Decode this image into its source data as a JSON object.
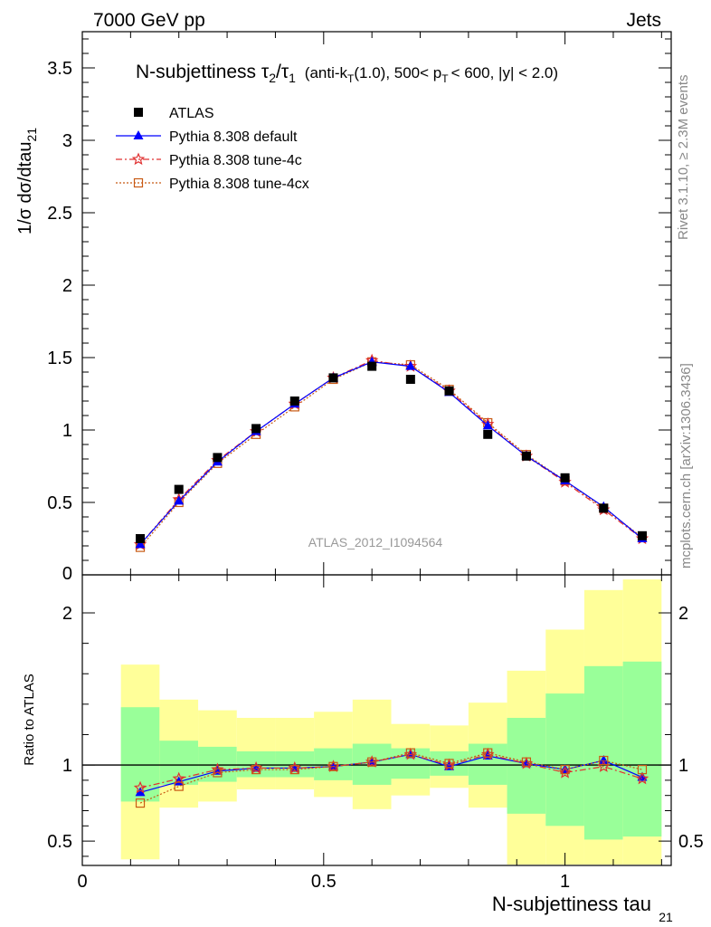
{
  "header": {
    "left": "7000 GeV pp",
    "right": "Jets"
  },
  "title": {
    "main": "N-subjettiness",
    "sym_tau": "τ",
    "sub2": "2",
    "slash": "/",
    "sub1": "1",
    "detail_a": "(anti-k",
    "detail_T": "T",
    "detail_b": "(1.0), 500< p",
    "detail_T2": "T",
    "detail_c": "< 600, |y| < 2.0)"
  },
  "side_labels": {
    "rivet": "Rivet 3.1.10, ≥ 2.3M events",
    "mcplots": "mcplots.cern.ch [arXiv:1306.3436]"
  },
  "analysis_id": "ATLAS_2012_I1094564",
  "axes": {
    "main_ylabel_main": "1/σ dσ/dtau",
    "main_ylabel_sub": "21",
    "ratio_ylabel": "Ratio to ATLAS",
    "xlabel_main": "N-subjettiness tau",
    "xlabel_sub": "21"
  },
  "legend": [
    {
      "label": "ATLAS",
      "color": "#000000",
      "marker": "square-filled"
    },
    {
      "label": "Pythia 8.308 default",
      "color": "#0000ff",
      "marker": "triangle",
      "dash": ""
    },
    {
      "label": "Pythia 8.308 tune-4c",
      "color": "#e03030",
      "marker": "star",
      "dash": "7,3,2,3"
    },
    {
      "label": "Pythia 8.308 tune-4cx",
      "color": "#c85a14",
      "marker": "open-square",
      "dash": "2,2"
    }
  ],
  "chart_data": {
    "type": "scatter",
    "x": [
      0.12,
      0.2,
      0.28,
      0.36,
      0.44,
      0.52,
      0.6,
      0.68,
      0.76,
      0.84,
      0.92,
      1.0,
      1.08,
      1.16
    ],
    "xlim": [
      0,
      1.22
    ],
    "main": {
      "ylim": [
        0,
        3.75
      ],
      "yticks": [
        0.5,
        1,
        1.5,
        2,
        2.5,
        3,
        3.5
      ],
      "ytick_labels": [
        "0.5",
        "1",
        "1.5",
        "2",
        "2.5",
        "3",
        "3.5"
      ],
      "ybottom_label": "0",
      "series": [
        {
          "name": "ATLAS",
          "values": [
            0.25,
            0.59,
            0.81,
            1.01,
            1.2,
            1.36,
            1.44,
            1.35,
            1.27,
            0.97,
            0.82,
            0.67,
            0.46,
            0.27
          ]
        },
        {
          "name": "Pythia 8.308 default",
          "values": [
            0.21,
            0.51,
            0.78,
            0.99,
            1.18,
            1.36,
            1.47,
            1.44,
            1.26,
            1.03,
            0.82,
            0.65,
            0.47,
            0.25
          ]
        },
        {
          "name": "Pythia 8.308 tune-4c",
          "values": [
            0.21,
            0.52,
            0.79,
            0.99,
            1.18,
            1.36,
            1.48,
            1.44,
            1.27,
            1.04,
            0.82,
            0.64,
            0.45,
            0.25
          ]
        },
        {
          "name": "Pythia 8.308 tune-4cx",
          "values": [
            0.19,
            0.5,
            0.77,
            0.97,
            1.16,
            1.35,
            1.47,
            1.45,
            1.28,
            1.05,
            0.83,
            0.65,
            0.46,
            0.26
          ]
        }
      ]
    },
    "ratio": {
      "ylim": [
        0.34,
        2.25
      ],
      "yticks": [
        0.5,
        1,
        2
      ],
      "ytick_labels": [
        "0.5",
        "1",
        "2"
      ],
      "band_edges": [
        0.08,
        0.16,
        0.24,
        0.32,
        0.4,
        0.48,
        0.56,
        0.64,
        0.72,
        0.8,
        0.88,
        0.96,
        1.04,
        1.12,
        1.2
      ],
      "band_inner_low": [
        0.76,
        0.87,
        0.89,
        0.92,
        0.92,
        0.9,
        0.87,
        0.91,
        0.93,
        0.87,
        0.68,
        0.6,
        0.51,
        0.53,
        0.51
      ],
      "band_inner_high": [
        1.38,
        1.16,
        1.12,
        1.09,
        1.09,
        1.11,
        1.14,
        1.11,
        1.09,
        1.14,
        1.31,
        1.47,
        1.65,
        1.68,
        1.73
      ],
      "band_outer_low": [
        0.38,
        0.72,
        0.76,
        0.84,
        0.84,
        0.79,
        0.71,
        0.8,
        0.85,
        0.72,
        0.29,
        0.29,
        0.29,
        0.29,
        0.29
      ],
      "band_outer_high": [
        1.66,
        1.43,
        1.36,
        1.31,
        1.31,
        1.35,
        1.43,
        1.27,
        1.26,
        1.41,
        1.62,
        1.89,
        2.15,
        2.22,
        2.25
      ],
      "series": [
        {
          "name": "Pythia 8.308 default",
          "values": [
            0.82,
            0.89,
            0.96,
            0.98,
            0.98,
            0.99,
            1.02,
            1.07,
            0.99,
            1.06,
            1.01,
            0.97,
            1.03,
            0.92
          ]
        },
        {
          "name": "Pythia 8.308 tune-4c",
          "values": [
            0.85,
            0.91,
            0.97,
            0.98,
            0.98,
            0.99,
            1.02,
            1.07,
            1.0,
            1.07,
            1.01,
            0.95,
            0.99,
            0.91
          ]
        },
        {
          "name": "Pythia 8.308 tune-4cx",
          "values": [
            0.75,
            0.86,
            0.95,
            0.97,
            0.97,
            0.99,
            1.02,
            1.08,
            1.01,
            1.08,
            1.02,
            0.97,
            1.03,
            0.97
          ]
        }
      ]
    },
    "xticks": [
      0,
      0.5,
      1
    ],
    "xtick_labels": [
      "0",
      "0.5",
      "1"
    ],
    "band_colors": {
      "outer": "#ffff99",
      "inner": "#99ff99"
    },
    "grid": false
  }
}
